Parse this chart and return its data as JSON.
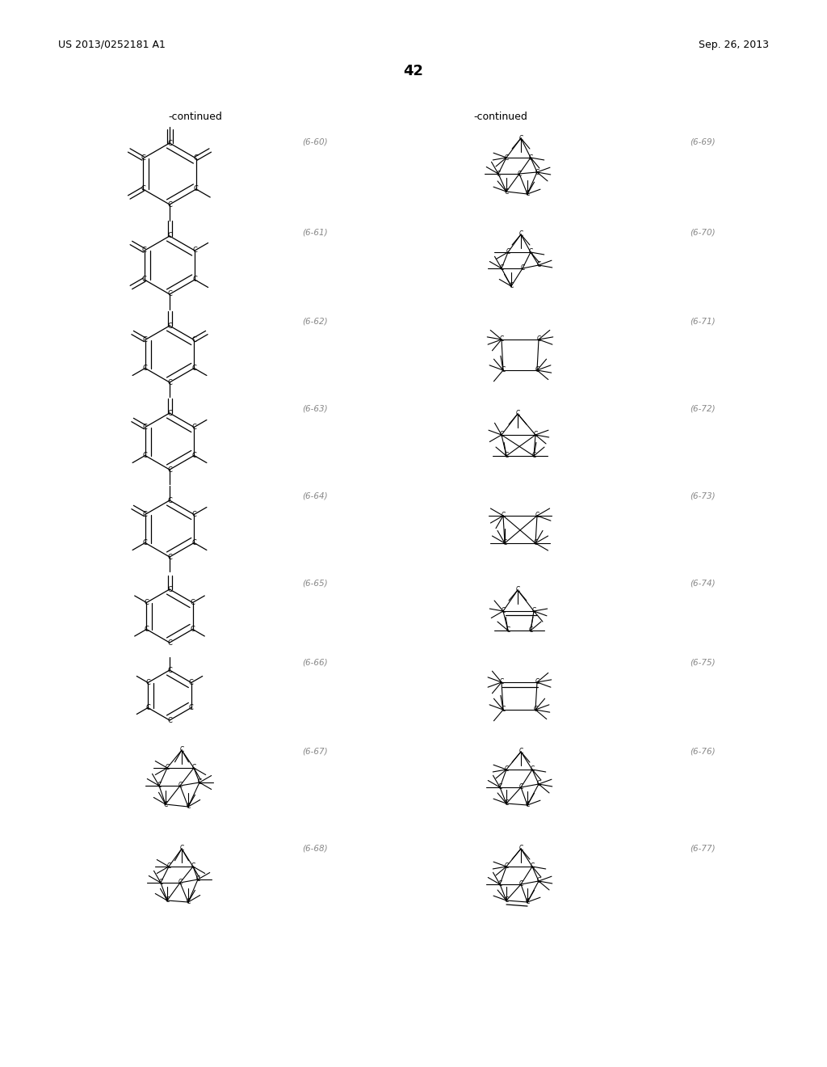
{
  "patent_number": "US 2013/0252181 A1",
  "date": "Sep. 26, 2013",
  "page_number": "42",
  "continued_label": "-continued",
  "left_labels": [
    "(6-60)",
    "(6-61)",
    "(6-62)",
    "(6-63)",
    "(6-64)",
    "(6-65)",
    "(6-66)",
    "(6-67)",
    "(6-68)"
  ],
  "right_labels": [
    "(6-69)",
    "(6-70)",
    "(6-71)",
    "(6-72)",
    "(6-73)",
    "(6-74)",
    "(6-75)",
    "(6-76)",
    "(6-77)"
  ],
  "text_color": "#000000",
  "gray_color": "#888888",
  "bg_color": "#ffffff"
}
